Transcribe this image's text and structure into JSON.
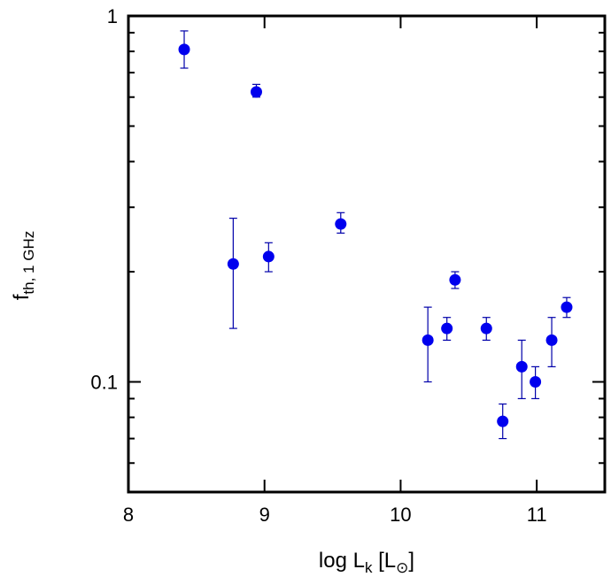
{
  "chart_data": {
    "type": "scatter",
    "title": "",
    "xlabel": {
      "main": "log L",
      "subscript": "k",
      "unit_open": " [L",
      "unit_subscript": "⊙",
      "unit_close": "]"
    },
    "ylabel": {
      "main": "f",
      "subscript": "th, 1 GHz"
    },
    "xlim": [
      8,
      11.5
    ],
    "ylim": [
      0.05,
      1
    ],
    "yscale": "log",
    "grid": false,
    "legend": "none",
    "x_ticks": [
      8,
      9,
      10,
      11
    ],
    "x_tick_labels": [
      "8",
      "9",
      "10",
      "11"
    ],
    "y_ticks": [
      0.1,
      1
    ],
    "y_tick_labels": [
      "0.1",
      "1"
    ],
    "marker_color": "#0000ee",
    "errorbar_color": "#0000aa",
    "axis_color": "#000000",
    "points": [
      {
        "x": 8.41,
        "y": 0.81,
        "ylo": 0.72,
        "yhi": 0.91
      },
      {
        "x": 8.94,
        "y": 0.62,
        "ylo": 0.6,
        "yhi": 0.65
      },
      {
        "x": 8.77,
        "y": 0.21,
        "ylo": 0.14,
        "yhi": 0.28
      },
      {
        "x": 9.03,
        "y": 0.22,
        "ylo": 0.2,
        "yhi": 0.24
      },
      {
        "x": 9.56,
        "y": 0.27,
        "ylo": 0.255,
        "yhi": 0.29
      },
      {
        "x": 10.2,
        "y": 0.13,
        "ylo": 0.1,
        "yhi": 0.16
      },
      {
        "x": 10.34,
        "y": 0.14,
        "ylo": 0.13,
        "yhi": 0.15
      },
      {
        "x": 10.4,
        "y": 0.19,
        "ylo": 0.18,
        "yhi": 0.2
      },
      {
        "x": 10.63,
        "y": 0.14,
        "ylo": 0.13,
        "yhi": 0.15
      },
      {
        "x": 10.75,
        "y": 0.078,
        "ylo": 0.07,
        "yhi": 0.087
      },
      {
        "x": 10.89,
        "y": 0.11,
        "ylo": 0.09,
        "yhi": 0.13
      },
      {
        "x": 10.99,
        "y": 0.1,
        "ylo": 0.09,
        "yhi": 0.11
      },
      {
        "x": 11.11,
        "y": 0.13,
        "ylo": 0.11,
        "yhi": 0.15
      },
      {
        "x": 11.22,
        "y": 0.16,
        "ylo": 0.15,
        "yhi": 0.17
      }
    ]
  }
}
